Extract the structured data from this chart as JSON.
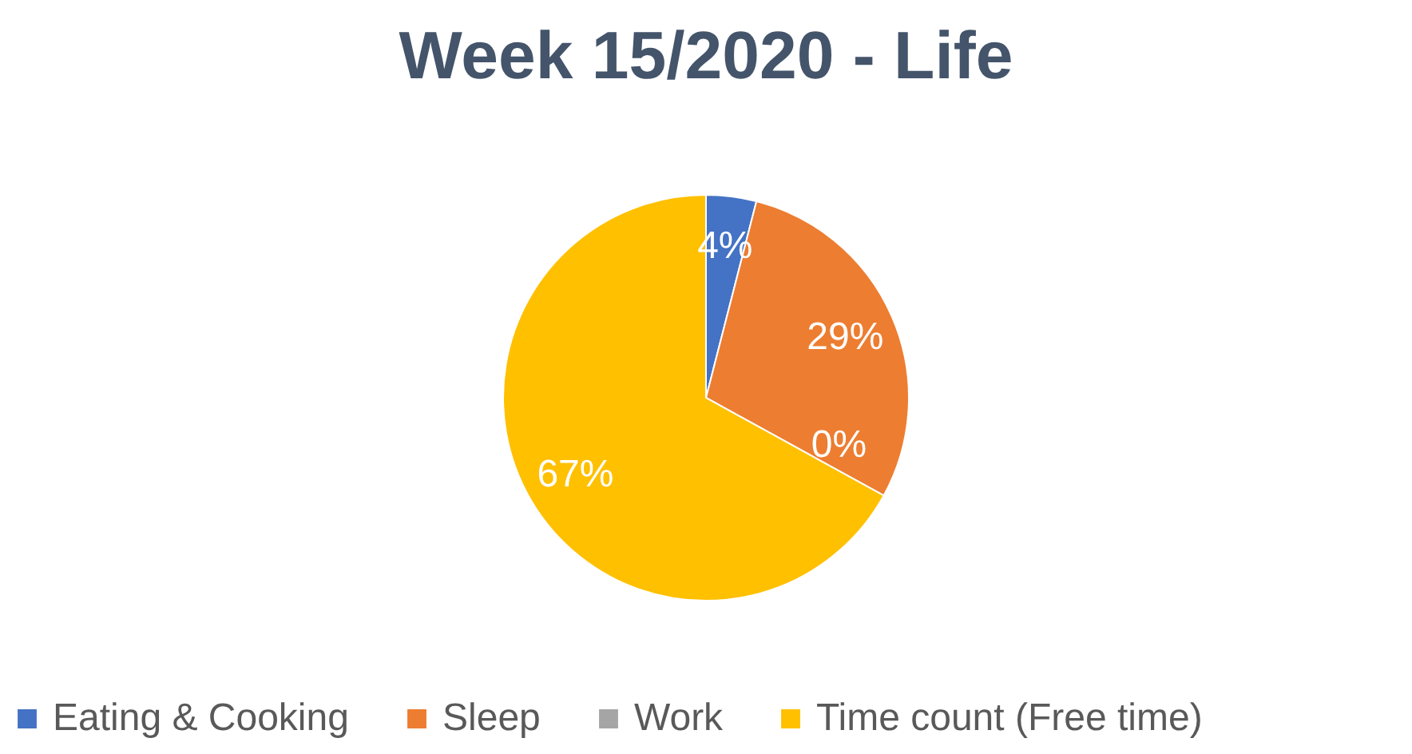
{
  "chart_data": {
    "type": "pie",
    "title": "Week 15/2020 - Life",
    "categories": [
      "Eating & Cooking",
      "Sleep",
      "Work",
      "Time count (Free time)"
    ],
    "values": [
      4,
      29,
      0,
      67
    ],
    "colors": [
      "#4472c4",
      "#ed7d31",
      "#a5a5a5",
      "#ffc000"
    ],
    "value_labels": [
      "4%",
      "29%",
      "0%",
      "67%"
    ],
    "legend": "bottom"
  }
}
